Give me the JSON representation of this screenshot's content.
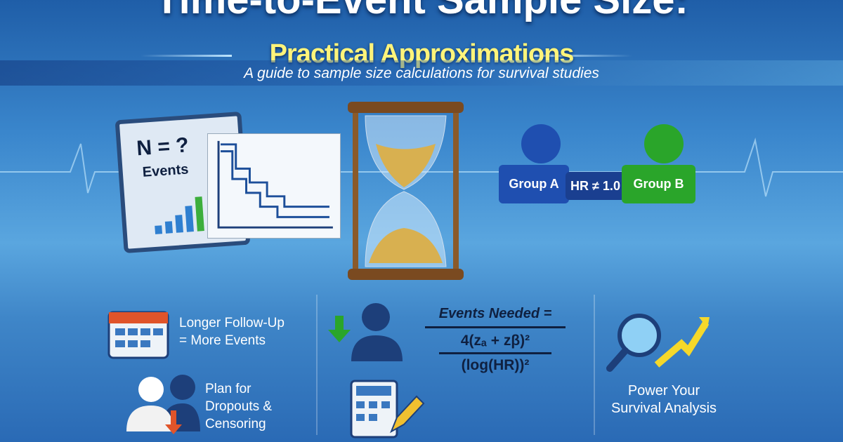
{
  "header": {
    "title": "Time-to-Event Sample Size:",
    "subtitle": "Practical Approximations",
    "tagline": "A guide to sample size calculations for survival studies"
  },
  "clipboard": {
    "line1": "N = ?",
    "line2": "Events"
  },
  "groups": {
    "a": "Group A",
    "hr": "HR ≠ 1.0",
    "b": "Group B",
    "color_a": "#1f4fb0",
    "color_b": "#2aa52a"
  },
  "tips": [
    {
      "line1": "Longer Follow-Up",
      "line2": "= More Events"
    },
    {
      "line1": "Plan for",
      "line2": "Dropouts &",
      "line3": "Censoring"
    }
  ],
  "formula": {
    "label": "Events Needed =",
    "numerator": "4(zₐ + zβ)²",
    "denominator": "(log(HR))²"
  },
  "power": {
    "line1": "Power Your",
    "line2": "Survival Analysis"
  }
}
